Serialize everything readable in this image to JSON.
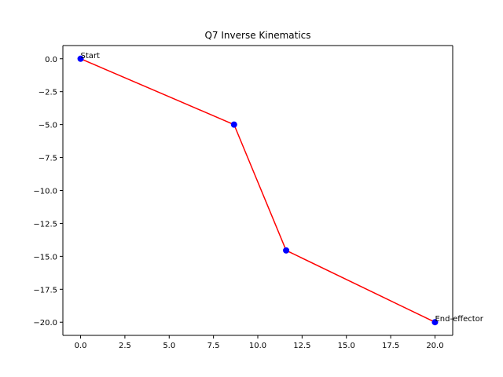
{
  "chart_data": {
    "type": "line",
    "title": "Q7 Inverse Kinematics",
    "xlabel": "",
    "ylabel": "",
    "xlim": [
      -1,
      21
    ],
    "ylim": [
      -21,
      1
    ],
    "xticks": [
      0.0,
      2.5,
      5.0,
      7.5,
      10.0,
      12.5,
      15.0,
      17.5,
      20.0
    ],
    "xtick_labels": [
      "0.0",
      "2.5",
      "5.0",
      "7.5",
      "10.0",
      "12.5",
      "15.0",
      "17.5",
      "20.0"
    ],
    "yticks": [
      0.0,
      -2.5,
      -5.0,
      -7.5,
      -10.0,
      -12.5,
      -15.0,
      -17.5,
      -20.0
    ],
    "ytick_labels": [
      "0.0",
      "−2.5",
      "−5.0",
      "−7.5",
      "−10.0",
      "−12.5",
      "−15.0",
      "−17.5",
      "−20.0"
    ],
    "grid": false,
    "series": [
      {
        "x": [
          0.0,
          8.66,
          11.6,
          20.0
        ],
        "y": [
          0.0,
          -5.0,
          -14.55,
          -20.0
        ],
        "line_color": "#ff0000",
        "marker_color": "#0000ff"
      }
    ],
    "annotations": [
      {
        "text": "Start",
        "x": 0.0,
        "y": 0.0
      },
      {
        "text": "End-effector",
        "x": 20.0,
        "y": -20.0
      }
    ]
  }
}
